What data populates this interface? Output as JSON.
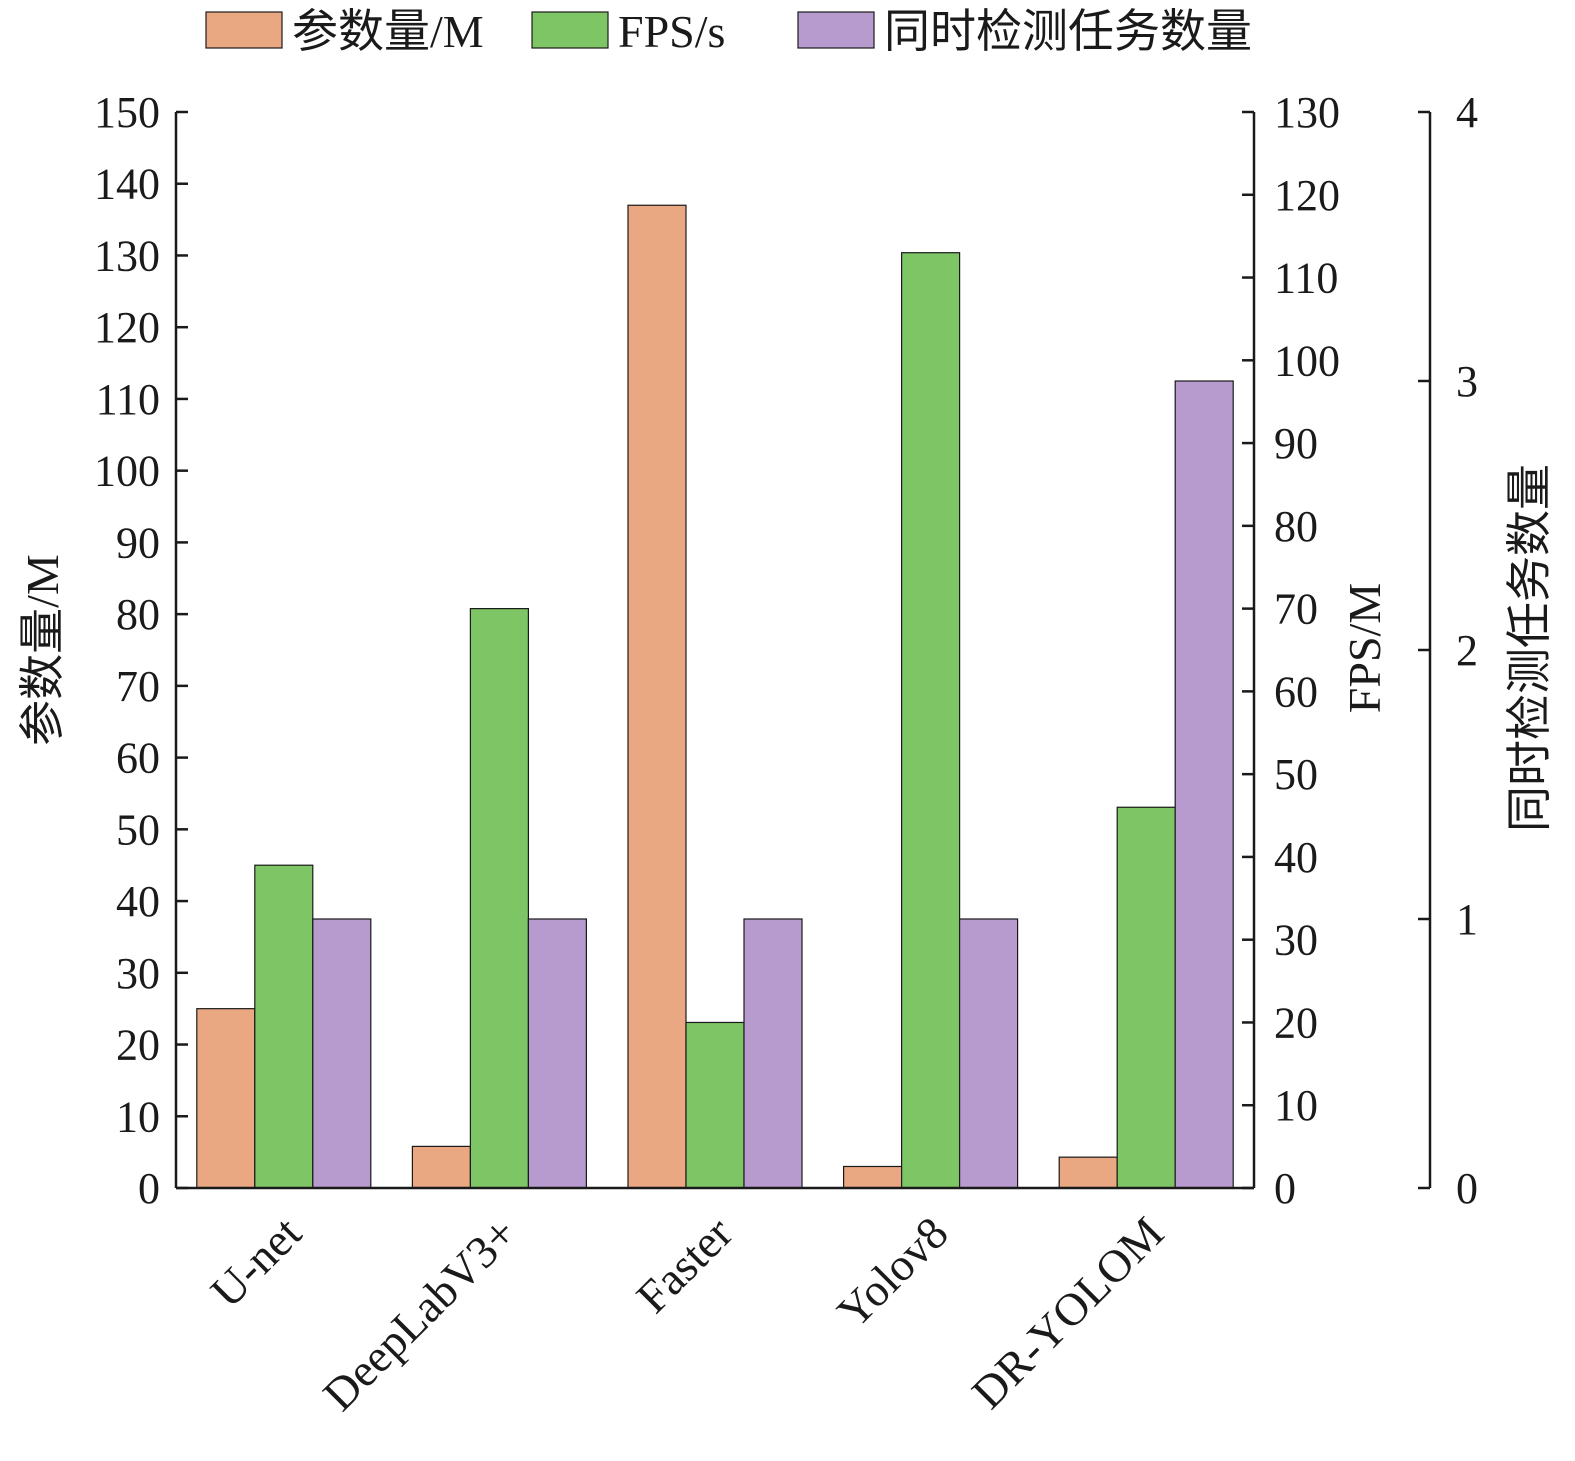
{
  "chart_data": {
    "type": "bar",
    "categories": [
      "U-net",
      "DeepLabV3+",
      "Faster",
      "Yolov8",
      "DR-YOLOM"
    ],
    "series": [
      {
        "name": "参数量/M",
        "axis": "left",
        "color": "#e9a882",
        "values": [
          25,
          5.8,
          137,
          3,
          4.3
        ]
      },
      {
        "name": "FPS/s",
        "axis": "right1",
        "color": "#7dc565",
        "values": [
          39,
          70,
          20,
          113,
          46
        ]
      },
      {
        "name": "同时检测任务数量",
        "axis": "right2",
        "color": "#b79ace",
        "values": [
          1,
          1,
          1,
          1,
          3
        ]
      }
    ],
    "axes": {
      "left": {
        "title": "参数量/M",
        "ylim": [
          0,
          150
        ],
        "ticks": [
          "0",
          "10",
          "20",
          "30",
          "40",
          "50",
          "60",
          "70",
          "80",
          "90",
          "100",
          "110",
          "120",
          "130",
          "140",
          "150"
        ]
      },
      "right1": {
        "title": "FPS/M",
        "ylim": [
          0,
          130
        ],
        "ticks": [
          "0",
          "10",
          "20",
          "30",
          "40",
          "50",
          "60",
          "70",
          "80",
          "90",
          "100",
          "110",
          "120",
          "130"
        ]
      },
      "right2": {
        "title": "同时检测任务数量",
        "ylim": [
          0,
          4
        ],
        "ticks": [
          "0",
          "1",
          "2",
          "3",
          "4"
        ]
      }
    },
    "legend_position": "top",
    "grid": false
  }
}
